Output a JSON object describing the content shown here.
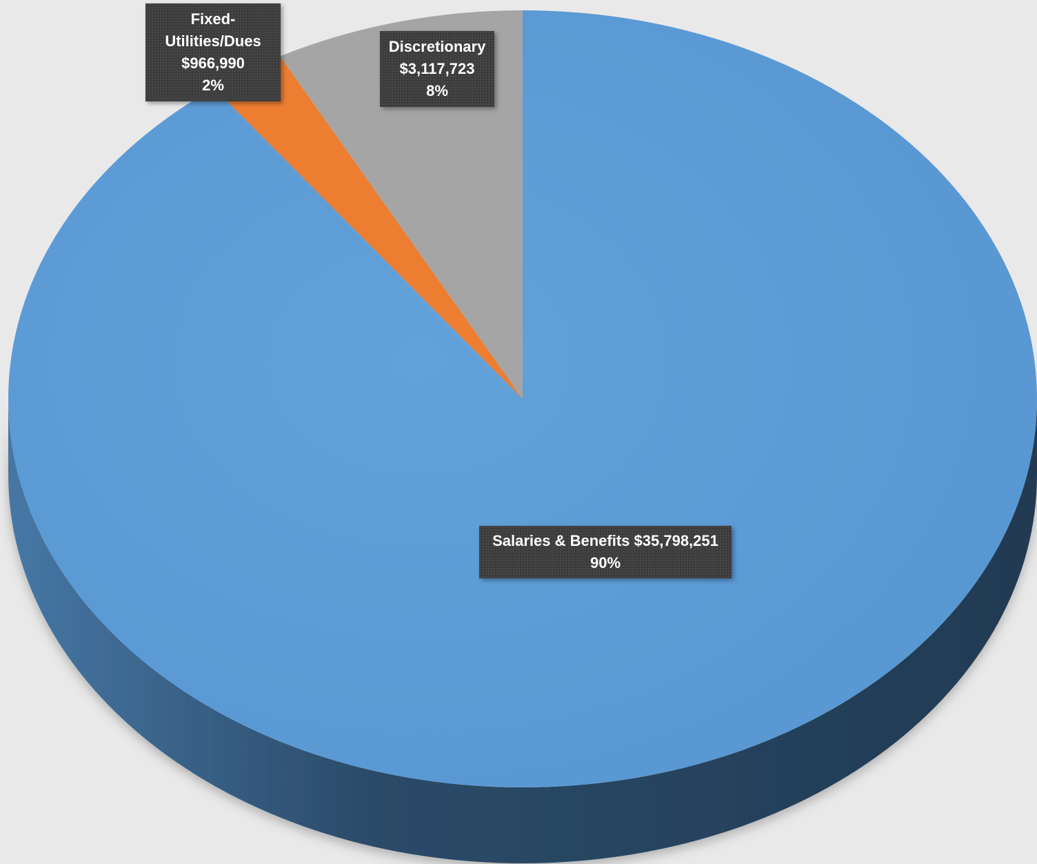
{
  "chart_data": {
    "type": "pie",
    "title": "",
    "slices": [
      {
        "name": "Salaries & Benefits",
        "value": 35798251,
        "value_label": "$35,798,251",
        "percent": 90,
        "percent_label": "90%",
        "color": "#5b9bd5",
        "side_color": "#233e57"
      },
      {
        "name": "Fixed-Utilities/Dues",
        "value": 966990,
        "value_label": "$966,990",
        "percent": 2,
        "percent_label": "2%",
        "color": "#ed7d31",
        "side_color": "#8a4516"
      },
      {
        "name": "Discretionary",
        "value": 3117723,
        "value_label": "$3,117,723",
        "percent": 8,
        "percent_label": "8%",
        "color": "#a5a5a5",
        "side_color": "#5a5a5a"
      }
    ],
    "legend": "none",
    "style": "3d-pie"
  },
  "labels": {
    "fixed": {
      "line1": "Fixed-",
      "line2": "Utilities/Dues",
      "value": "$966,990",
      "percent": "2%"
    },
    "discretionary": {
      "name": "Discretionary",
      "value": "$3,117,723",
      "percent": "8%"
    },
    "salaries": {
      "text": "Salaries & Benefits $35,798,251",
      "percent": "90%"
    }
  },
  "colors": {
    "background": "#e9e9e9",
    "label_background": "#3c3c3c",
    "label_text": "#ffffff"
  }
}
